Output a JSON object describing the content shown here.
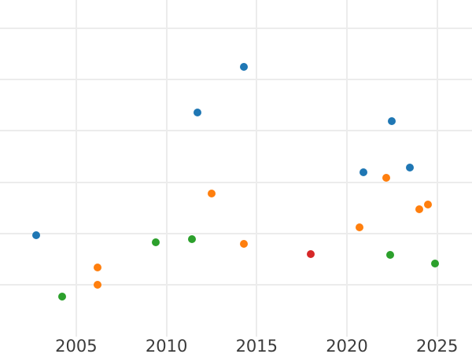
{
  "chart_data": {
    "type": "scatter",
    "title": "",
    "xlabel": "",
    "ylabel": "",
    "grid": true,
    "legend_position": "none",
    "background_color": "#ffffff",
    "gridline_color": "#ececec",
    "tick_label_color": "#3b3b3b",
    "x_ticks": [
      2005,
      2010,
      2015,
      2020,
      2025
    ],
    "x_tick_labels": [
      "2005",
      "2010",
      "2015",
      "2020",
      "2025"
    ],
    "xlim": [
      2000.8,
      2026.9
    ],
    "y_axis_note": "y tick labels not visible in image; y values estimated in gridline units, 0 = bottom edge of plot, one unit per horizontal gridline",
    "y_gridline_units": [
      1,
      2,
      3,
      4,
      5,
      6
    ],
    "ylim": [
      0,
      6.55
    ],
    "series": [
      {
        "name": "blue",
        "color": "#1f77b4",
        "points": [
          {
            "x": 2002.8,
            "y": 1.97
          },
          {
            "x": 2011.7,
            "y": 4.35
          },
          {
            "x": 2014.3,
            "y": 5.25
          },
          {
            "x": 2020.9,
            "y": 3.19
          },
          {
            "x": 2022.5,
            "y": 4.19
          },
          {
            "x": 2023.5,
            "y": 3.29
          }
        ]
      },
      {
        "name": "orange",
        "color": "#ff7f0e",
        "points": [
          {
            "x": 2006.2,
            "y": 1.34
          },
          {
            "x": 2006.2,
            "y": 1.0
          },
          {
            "x": 2012.5,
            "y": 2.78
          },
          {
            "x": 2014.3,
            "y": 1.8
          },
          {
            "x": 2020.7,
            "y": 2.12
          },
          {
            "x": 2022.2,
            "y": 3.08
          },
          {
            "x": 2024.0,
            "y": 2.48
          },
          {
            "x": 2024.5,
            "y": 2.57
          }
        ]
      },
      {
        "name": "green",
        "color": "#2ca02c",
        "points": [
          {
            "x": 2004.2,
            "y": 0.77
          },
          {
            "x": 2009.4,
            "y": 1.83
          },
          {
            "x": 2011.4,
            "y": 1.89
          },
          {
            "x": 2022.4,
            "y": 1.59
          },
          {
            "x": 2024.9,
            "y": 1.42
          }
        ]
      },
      {
        "name": "red",
        "color": "#d62728",
        "points": [
          {
            "x": 2018.0,
            "y": 1.6
          }
        ]
      }
    ]
  }
}
